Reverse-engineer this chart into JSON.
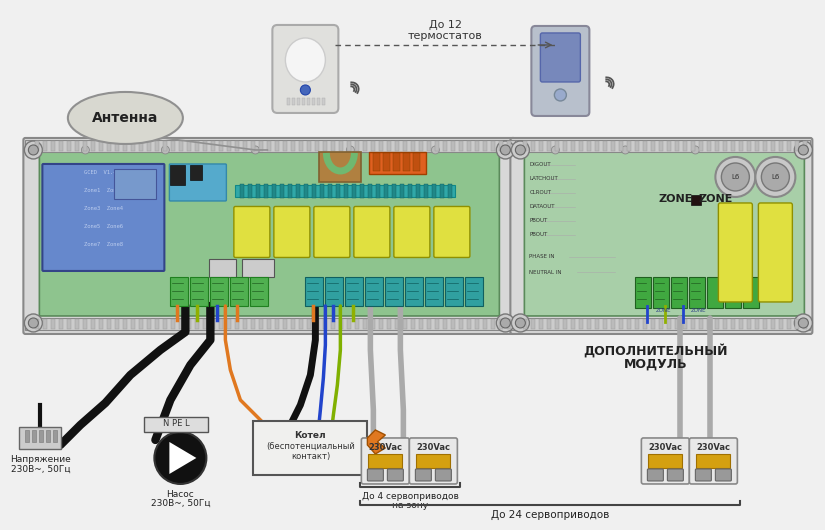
{
  "texts": {
    "antenna": "Антенна",
    "up_to_12_line1": "До 12",
    "up_to_12_line2": "термостатов",
    "voltage_line1": "Напряжение",
    "voltage_line2": "230В~, 50Гц",
    "pump_line1": "Насос",
    "pump_line2": "230В~, 50Гц",
    "boiler_line1": "Котел",
    "boiler_line2": "(беспотенциальный",
    "boiler_line3": "контакт)",
    "up_to_4_line1": "До 4 сервоприводов",
    "up_to_4_line2": "на зону",
    "up_to_24": "До 24 сервоприводов",
    "additional_line1": "ДОПОЛНИТЕЛЬНЫЙ",
    "additional_line2": "МОДУЛЬ",
    "zone": "ZONE",
    "vac": "230Vac",
    "npe": "N PE L",
    "digout": "DIGOUT",
    "latchout": "LATCHOUT",
    "clrout": "CLROUT",
    "dataout": "DATAOUT",
    "pbout1": "PBOUT",
    "pbout2": "PBOUT",
    "phase_in": "PHASE IN",
    "neutral_in": "NEUTRAL IN",
    "zone_in": "ZONE"
  },
  "colors": {
    "bg": "#f0f0f0",
    "board_fill": "#8ec48e",
    "board_edge": "#707070",
    "board_inner": "#9dd49d",
    "ext_board_fill": "#a8cfa8",
    "ext_board_inner": "#b8dfb8",
    "lcd_fill": "#6688cc",
    "relay_fill": "#e0e040",
    "relay_edge": "#909000",
    "connector_fill": "#30a0a0",
    "connector_edge": "#106060",
    "green_connector_fill": "#40c040",
    "green_connector_edge": "#208020",
    "wire_black": "#111111",
    "wire_gray": "#aaaaaa",
    "wire_orange": "#e07820",
    "wire_blue": "#2244cc",
    "wire_yg": "#80b000",
    "antenna_fill": "#d8d8d0",
    "antenna_edge": "#909090",
    "hole_outer": "#cccccc",
    "hole_inner": "#888888",
    "din_rail": "#cccccc",
    "din_edge": "#888888",
    "servo_body": "#e8e8e8",
    "servo_accent": "#d4a010"
  }
}
